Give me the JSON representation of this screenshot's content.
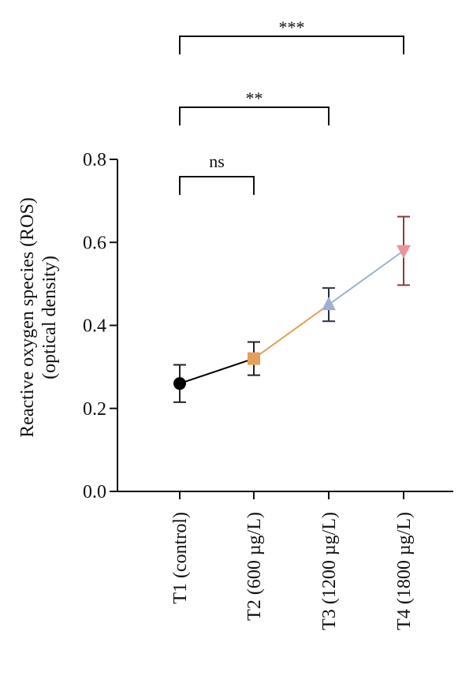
{
  "chart_data": {
    "type": "line",
    "title": "",
    "xlabel": "",
    "ylabel": [
      "Reactive oxygen species (ROS)",
      "(optical density)"
    ],
    "ylim": [
      0,
      0.8
    ],
    "yticks": [
      "0.0",
      "0.2",
      "0.4",
      "0.6",
      "0.8"
    ],
    "categories": [
      "T1 (control)",
      "T2 (600 µg/L)",
      "T3 (1200 µg/L)",
      "T4 (1800 µg/L)"
    ],
    "values": [
      0.26,
      0.32,
      0.45,
      0.58
    ],
    "error_low": [
      0.215,
      0.28,
      0.41,
      0.497
    ],
    "error_high": [
      0.305,
      0.36,
      0.49,
      0.662
    ],
    "markers": [
      "circle",
      "square",
      "triangle-up",
      "triangle-down"
    ],
    "colors": [
      "#000000",
      "#E3A05C",
      "#9FB0D4",
      "#E8969A"
    ],
    "error_colors": [
      "#222222",
      "#222222",
      "#2c3140",
      "#8a3a3a"
    ],
    "segment_colors": [
      "#000000",
      "#E3A05C",
      "#9FB0D4"
    ],
    "grid": false,
    "significance": [
      {
        "from": 0,
        "to": 1,
        "label": "ns"
      },
      {
        "from": 0,
        "to": 2,
        "label": "**"
      },
      {
        "from": 0,
        "to": 3,
        "label": "***"
      }
    ]
  }
}
